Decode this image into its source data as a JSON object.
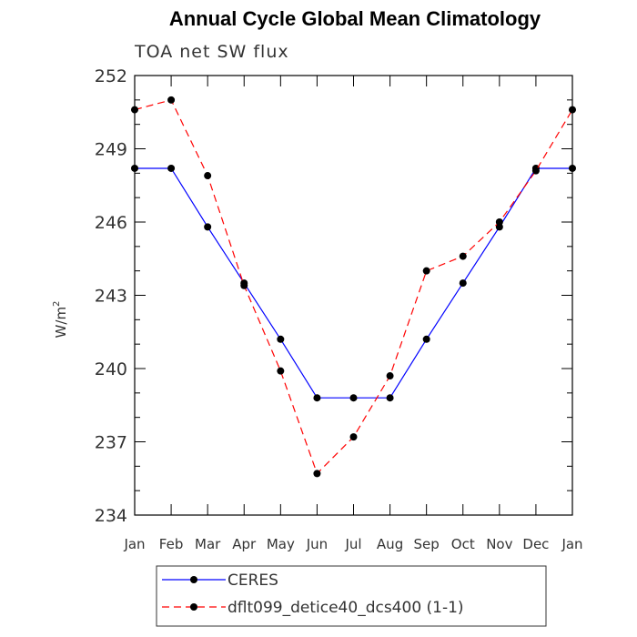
{
  "chart_data": {
    "type": "line",
    "title": "Annual Cycle Global Mean Climatology",
    "subtitle": "TOA net SW flux",
    "xlabel": "",
    "ylabel": "W/m",
    "ylabel_superscript": "2",
    "categories": [
      "Jan",
      "Feb",
      "Mar",
      "Apr",
      "May",
      "Jun",
      "Jul",
      "Aug",
      "Sep",
      "Oct",
      "Nov",
      "Dec",
      "Jan"
    ],
    "yticks": [
      "234",
      "237",
      "240",
      "243",
      "246",
      "249",
      "252"
    ],
    "ylim": [
      234,
      252
    ],
    "series": [
      {
        "name": "CERES",
        "color": "#0000ff",
        "dash": "solid",
        "values": [
          248.2,
          248.2,
          245.8,
          243.5,
          241.2,
          238.8,
          238.8,
          238.8,
          241.2,
          243.5,
          245.8,
          248.2,
          248.2
        ]
      },
      {
        "name": "dflt099_detice40_dcs400 (1-1)",
        "color": "#ff0000",
        "dash": "dashed",
        "values": [
          250.6,
          251.0,
          247.9,
          243.4,
          239.9,
          235.7,
          237.2,
          239.7,
          244.0,
          244.6,
          246.0,
          248.1,
          250.6
        ]
      }
    ],
    "legend_position": "bottom"
  }
}
